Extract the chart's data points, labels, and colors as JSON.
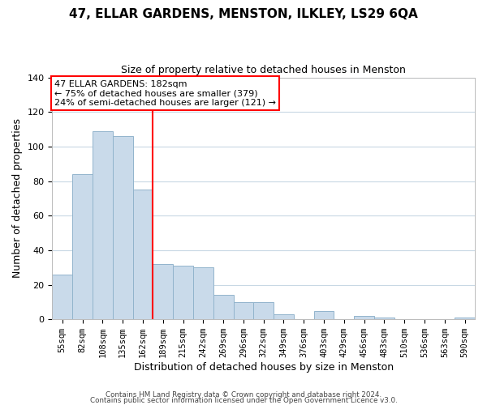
{
  "title": "47, ELLAR GARDENS, MENSTON, ILKLEY, LS29 6QA",
  "subtitle": "Size of property relative to detached houses in Menston",
  "xlabel": "Distribution of detached houses by size in Menston",
  "ylabel": "Number of detached properties",
  "bar_labels": [
    "55sqm",
    "82sqm",
    "108sqm",
    "135sqm",
    "162sqm",
    "189sqm",
    "215sqm",
    "242sqm",
    "269sqm",
    "296sqm",
    "322sqm",
    "349sqm",
    "376sqm",
    "403sqm",
    "429sqm",
    "456sqm",
    "483sqm",
    "510sqm",
    "536sqm",
    "563sqm",
    "590sqm"
  ],
  "bar_values": [
    26,
    84,
    109,
    106,
    75,
    32,
    31,
    30,
    14,
    10,
    10,
    3,
    0,
    5,
    0,
    2,
    1,
    0,
    0,
    0,
    1
  ],
  "bar_color": "#c9daea",
  "bar_edge_color": "#92b4cc",
  "vline_x": 4.5,
  "vline_color": "red",
  "ylim": [
    0,
    140
  ],
  "yticks": [
    0,
    20,
    40,
    60,
    80,
    100,
    120,
    140
  ],
  "annotation_title": "47 ELLAR GARDENS: 182sqm",
  "annotation_line1": "← 75% of detached houses are smaller (379)",
  "annotation_line2": "24% of semi-detached houses are larger (121) →",
  "annotation_box_color": "#ffffff",
  "annotation_box_edge": "red",
  "footer_line1": "Contains HM Land Registry data © Crown copyright and database right 2024.",
  "footer_line2": "Contains public sector information licensed under the Open Government Licence v3.0.",
  "background_color": "#ffffff",
  "grid_color": "#c8d8e4"
}
